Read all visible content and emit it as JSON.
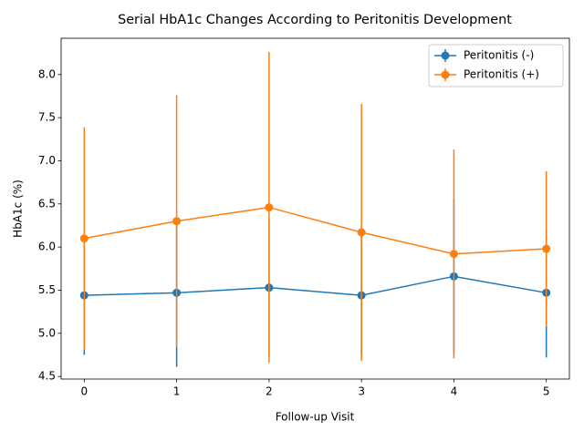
{
  "chart_data": {
    "type": "errorbar-line",
    "title": "Serial HbA1c Changes According to Peritonitis Development",
    "x_label": "Follow-up Visit",
    "y_label": "HbA1c (%)",
    "x": [
      0,
      1,
      2,
      3,
      4,
      5
    ],
    "series": [
      {
        "name": "Peritonitis (-)",
        "color": "#1f77b4",
        "values": [
          5.44,
          5.47,
          5.53,
          5.44,
          5.66,
          5.47
        ],
        "errors": [
          0.69,
          0.86,
          0.8,
          0.7,
          0.9,
          0.75
        ]
      },
      {
        "name": "Peritonitis (+)",
        "color": "#ff7f0e",
        "values": [
          6.1,
          6.3,
          6.46,
          6.17,
          5.92,
          5.98
        ],
        "errors": [
          1.29,
          1.46,
          1.8,
          1.49,
          1.21,
          0.9
        ]
      }
    ],
    "xlim": [
      -0.25,
      5.25
    ],
    "ylim": [
      4.47,
      8.42
    ],
    "xticks": [
      0,
      1,
      2,
      3,
      4,
      5
    ],
    "yticks": [
      {
        "value": 4.5,
        "label": "4.5"
      },
      {
        "value": 5.0,
        "label": "5.0"
      },
      {
        "value": 5.5,
        "label": "5.5"
      },
      {
        "value": 6.0,
        "label": "6.0"
      },
      {
        "value": 6.5,
        "label": "6.5"
      },
      {
        "value": 7.0,
        "label": "7.0"
      },
      {
        "value": 7.5,
        "label": "7.5"
      },
      {
        "value": 8.0,
        "label": "8.0"
      }
    ],
    "legend": "upper right"
  }
}
